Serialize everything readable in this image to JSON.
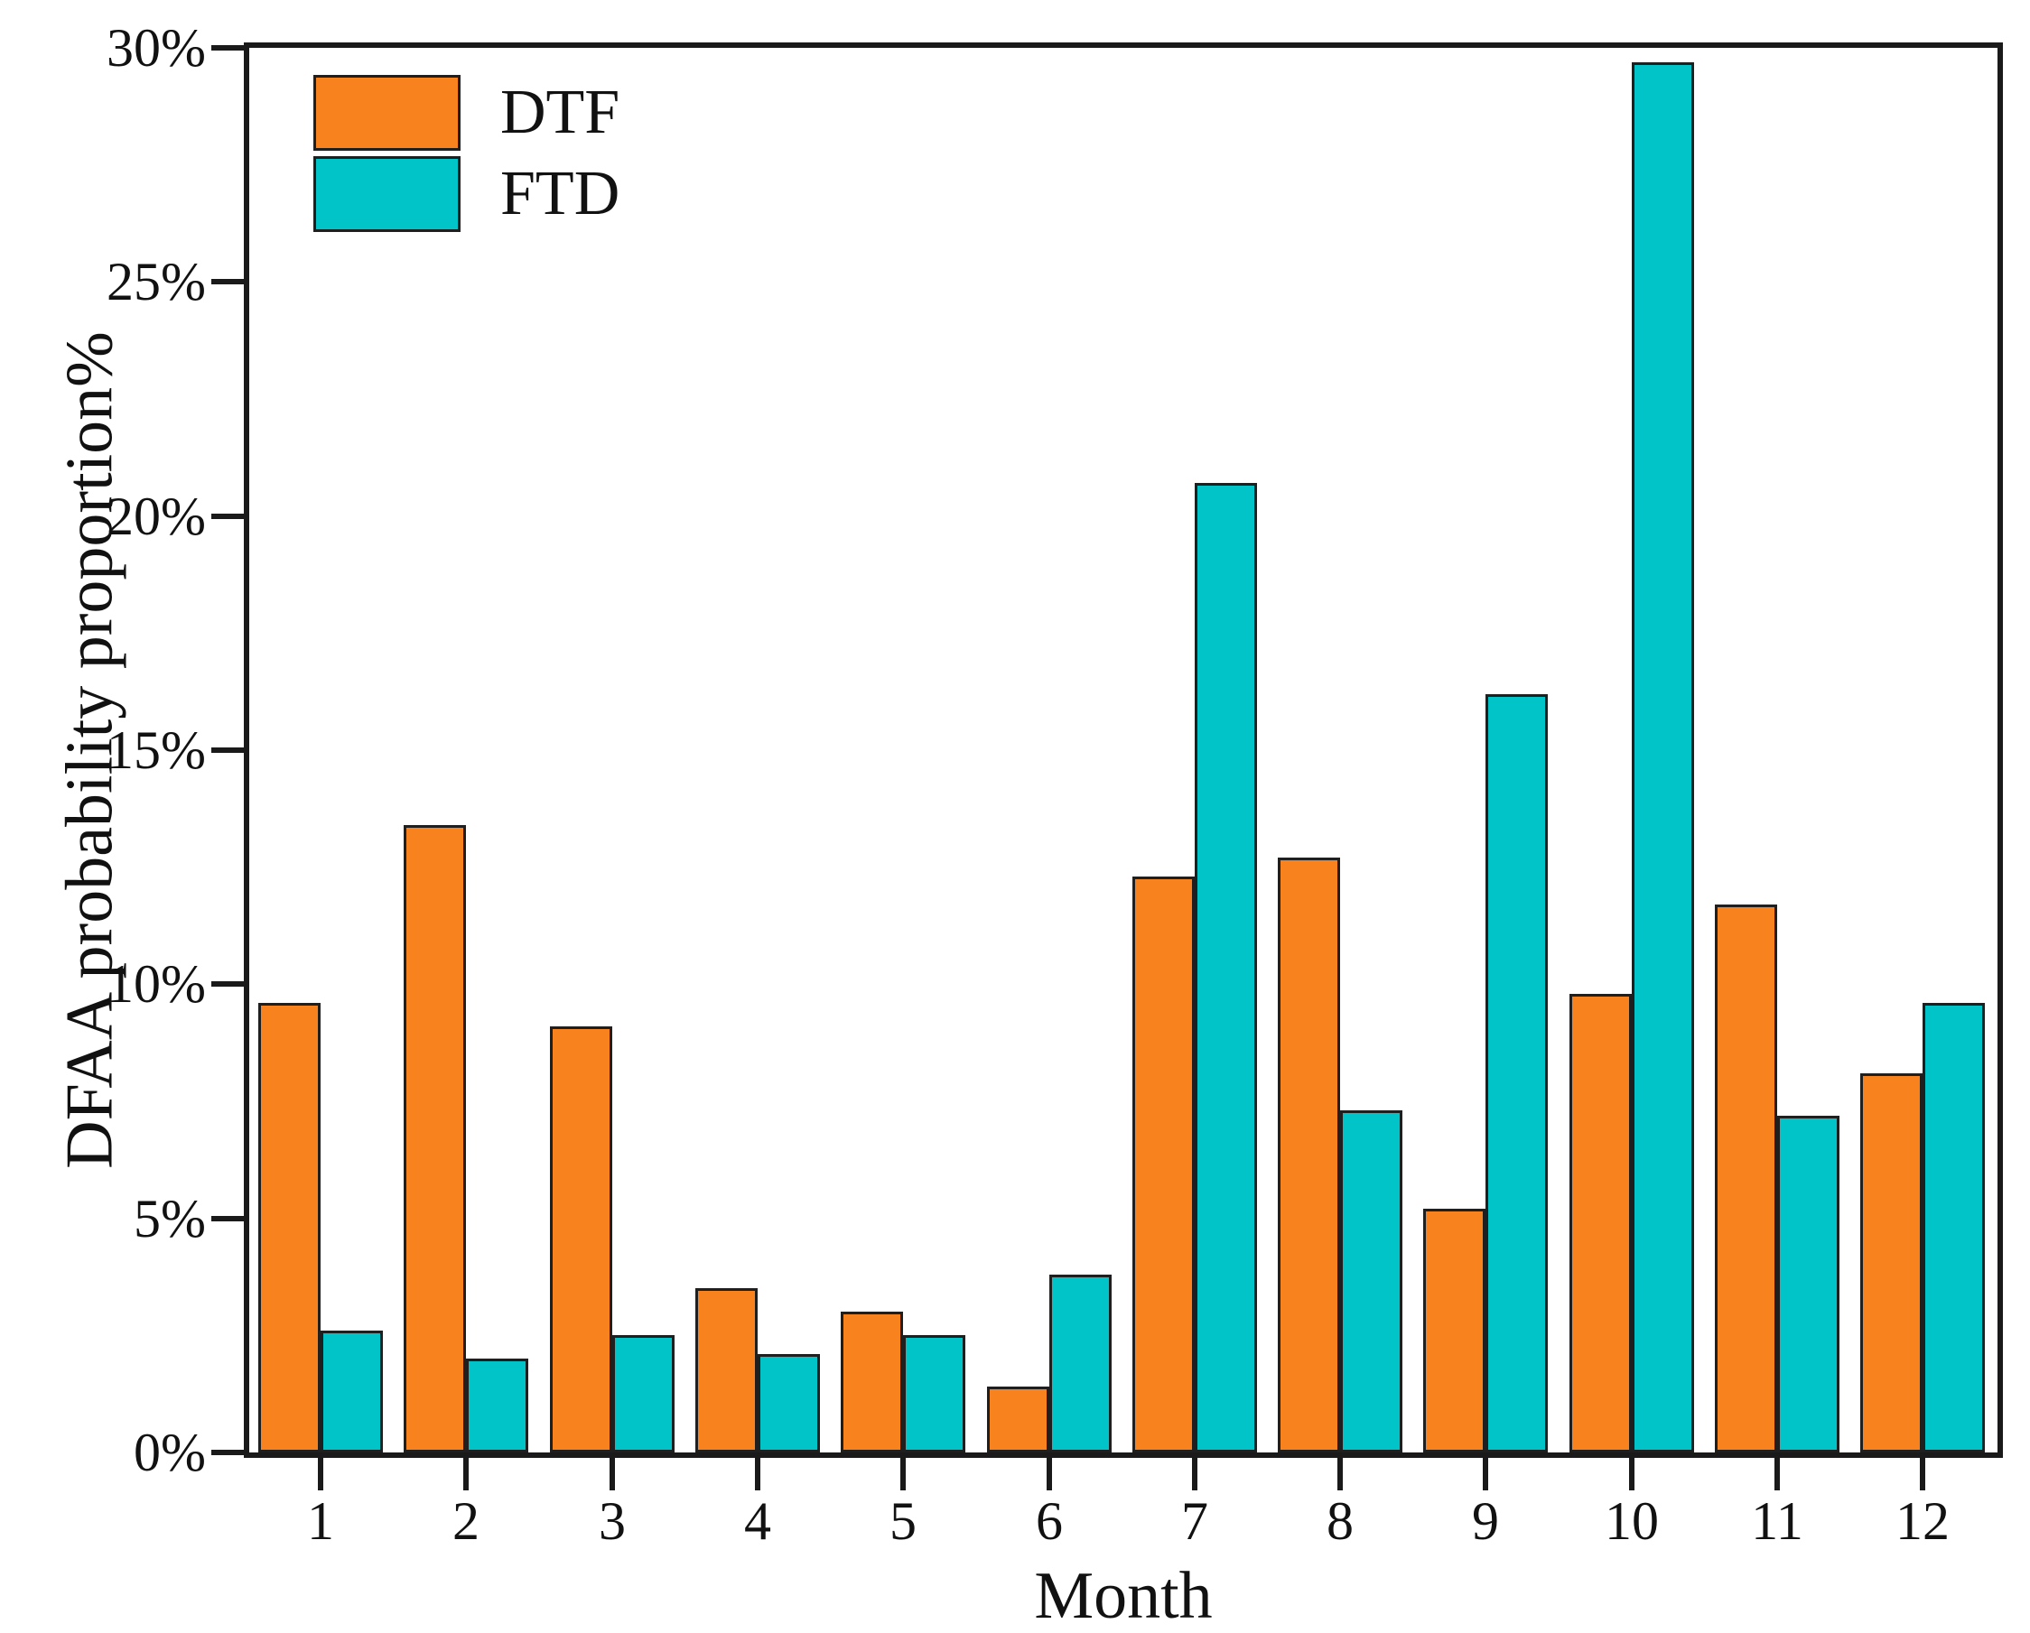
{
  "chart_data": {
    "type": "bar",
    "title": "",
    "xlabel": "Month",
    "ylabel": "DFAA probability proportion%",
    "ylim": [
      0,
      30
    ],
    "grid": false,
    "legend_position": "top-left",
    "categories": [
      "1",
      "2",
      "3",
      "4",
      "5",
      "6",
      "7",
      "8",
      "9",
      "10",
      "11",
      "12"
    ],
    "yticks": [
      {
        "value": 0,
        "label": "0%"
      },
      {
        "value": 5,
        "label": "5%"
      },
      {
        "value": 10,
        "label": "10%"
      },
      {
        "value": 15,
        "label": "15%"
      },
      {
        "value": 20,
        "label": "20%"
      },
      {
        "value": 25,
        "label": "25%"
      },
      {
        "value": 30,
        "label": "30%"
      }
    ],
    "series": [
      {
        "name": "DTF",
        "color": "#F8821E",
        "values": [
          9.6,
          13.4,
          9.1,
          3.5,
          3.0,
          1.4,
          12.3,
          12.7,
          5.2,
          9.8,
          11.7,
          8.1
        ]
      },
      {
        "name": "FTD",
        "color": "#00C4C8",
        "values": [
          2.6,
          2.0,
          2.5,
          2.1,
          2.5,
          3.8,
          20.7,
          7.3,
          16.2,
          29.7,
          7.2,
          9.6
        ]
      }
    ]
  },
  "legend": {
    "items": [
      {
        "label": "DTF",
        "color": "#F8821E"
      },
      {
        "label": "FTD",
        "color": "#00C4C8"
      }
    ]
  },
  "colors": {
    "axis": "#1a1a1a",
    "bar_outline": "#1f1f1f",
    "text": "#111111",
    "background": "#ffffff"
  }
}
